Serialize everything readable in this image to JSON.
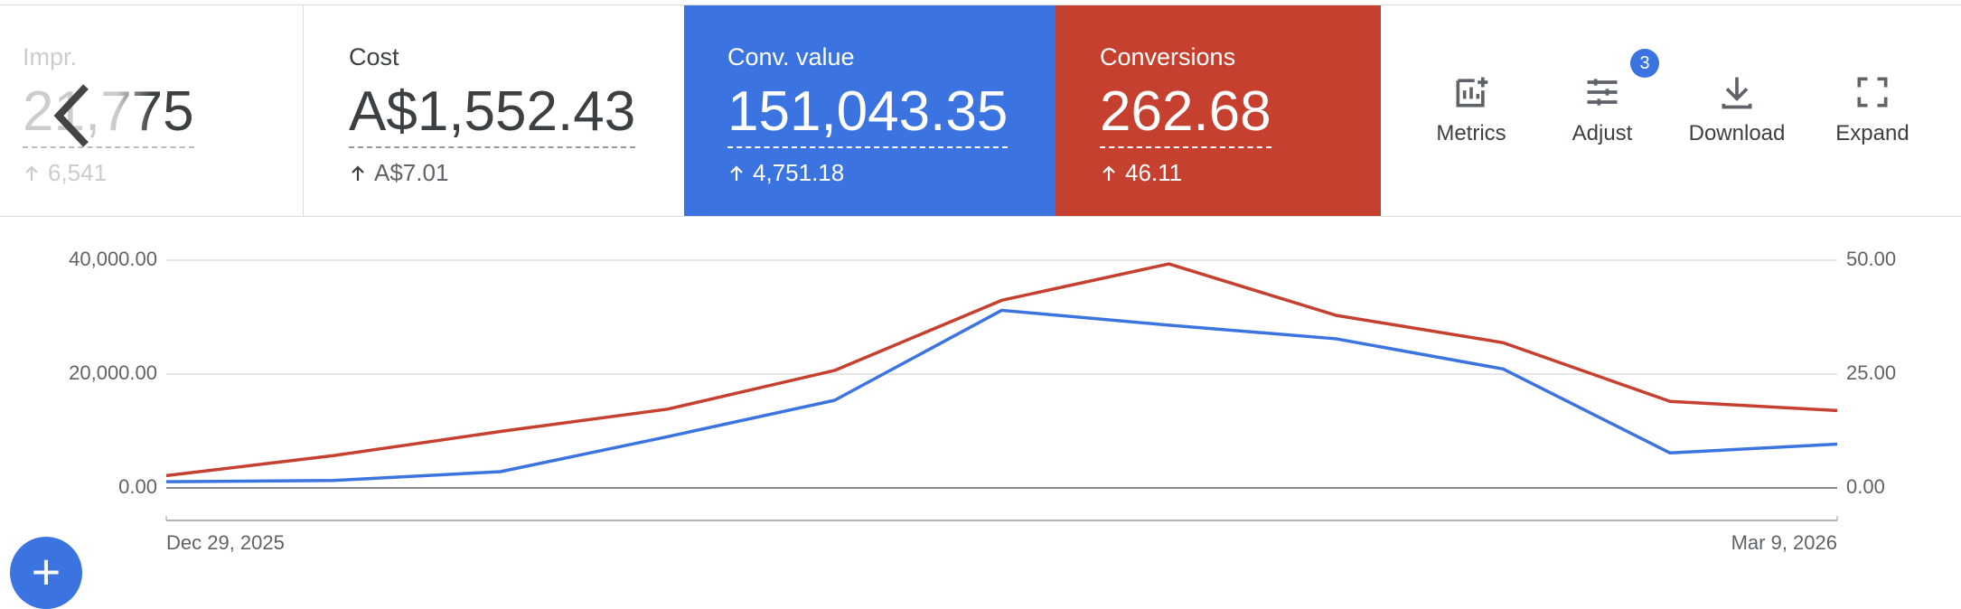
{
  "scorecards": [
    {
      "label": "Impr.",
      "value": "21,775",
      "delta": "6,541"
    },
    {
      "label": "Cost",
      "value": "A$1,552.43",
      "delta": "A$7.01"
    },
    {
      "label": "Conv. value",
      "value": "151,043.35",
      "delta": "4,751.18"
    },
    {
      "label": "Conversions",
      "value": "262.68",
      "delta": "46.11"
    }
  ],
  "toolbar": {
    "metrics": "Metrics",
    "adjust": "Adjust",
    "adjust_badge": "3",
    "download": "Download",
    "expand": "Expand"
  },
  "chart_data": {
    "type": "line",
    "categories": [
      "Dec 29, 2025",
      null,
      null,
      null,
      null,
      null,
      null,
      null,
      null,
      null,
      "Mar 9, 2026"
    ],
    "series": [
      {
        "color": "#3b73e0",
        "values": [
          1100,
          1300,
          2860,
          9000,
          15400,
          31200,
          28600,
          26200,
          20900,
          6150,
          7700
        ]
      },
      {
        "color": "#c5402f",
        "axis": "y2",
        "values": [
          2.7,
          7.1,
          12.4,
          17.3,
          25.8,
          41.2,
          49.2,
          37.9,
          31.9,
          19.0,
          17.0
        ]
      }
    ],
    "ylim": [
      0,
      40000
    ],
    "yticks": [
      {
        "value": 0,
        "label": "0.00"
      },
      {
        "value": 20000,
        "label": "20,000.00"
      },
      {
        "value": 40000,
        "label": "40,000.00"
      }
    ],
    "y2lim": [
      0,
      50
    ],
    "y2ticks": [
      {
        "value": 0,
        "label": "0.00"
      },
      {
        "value": 25,
        "label": "25.00"
      },
      {
        "value": 50,
        "label": "50.00"
      }
    ],
    "grid": true
  }
}
